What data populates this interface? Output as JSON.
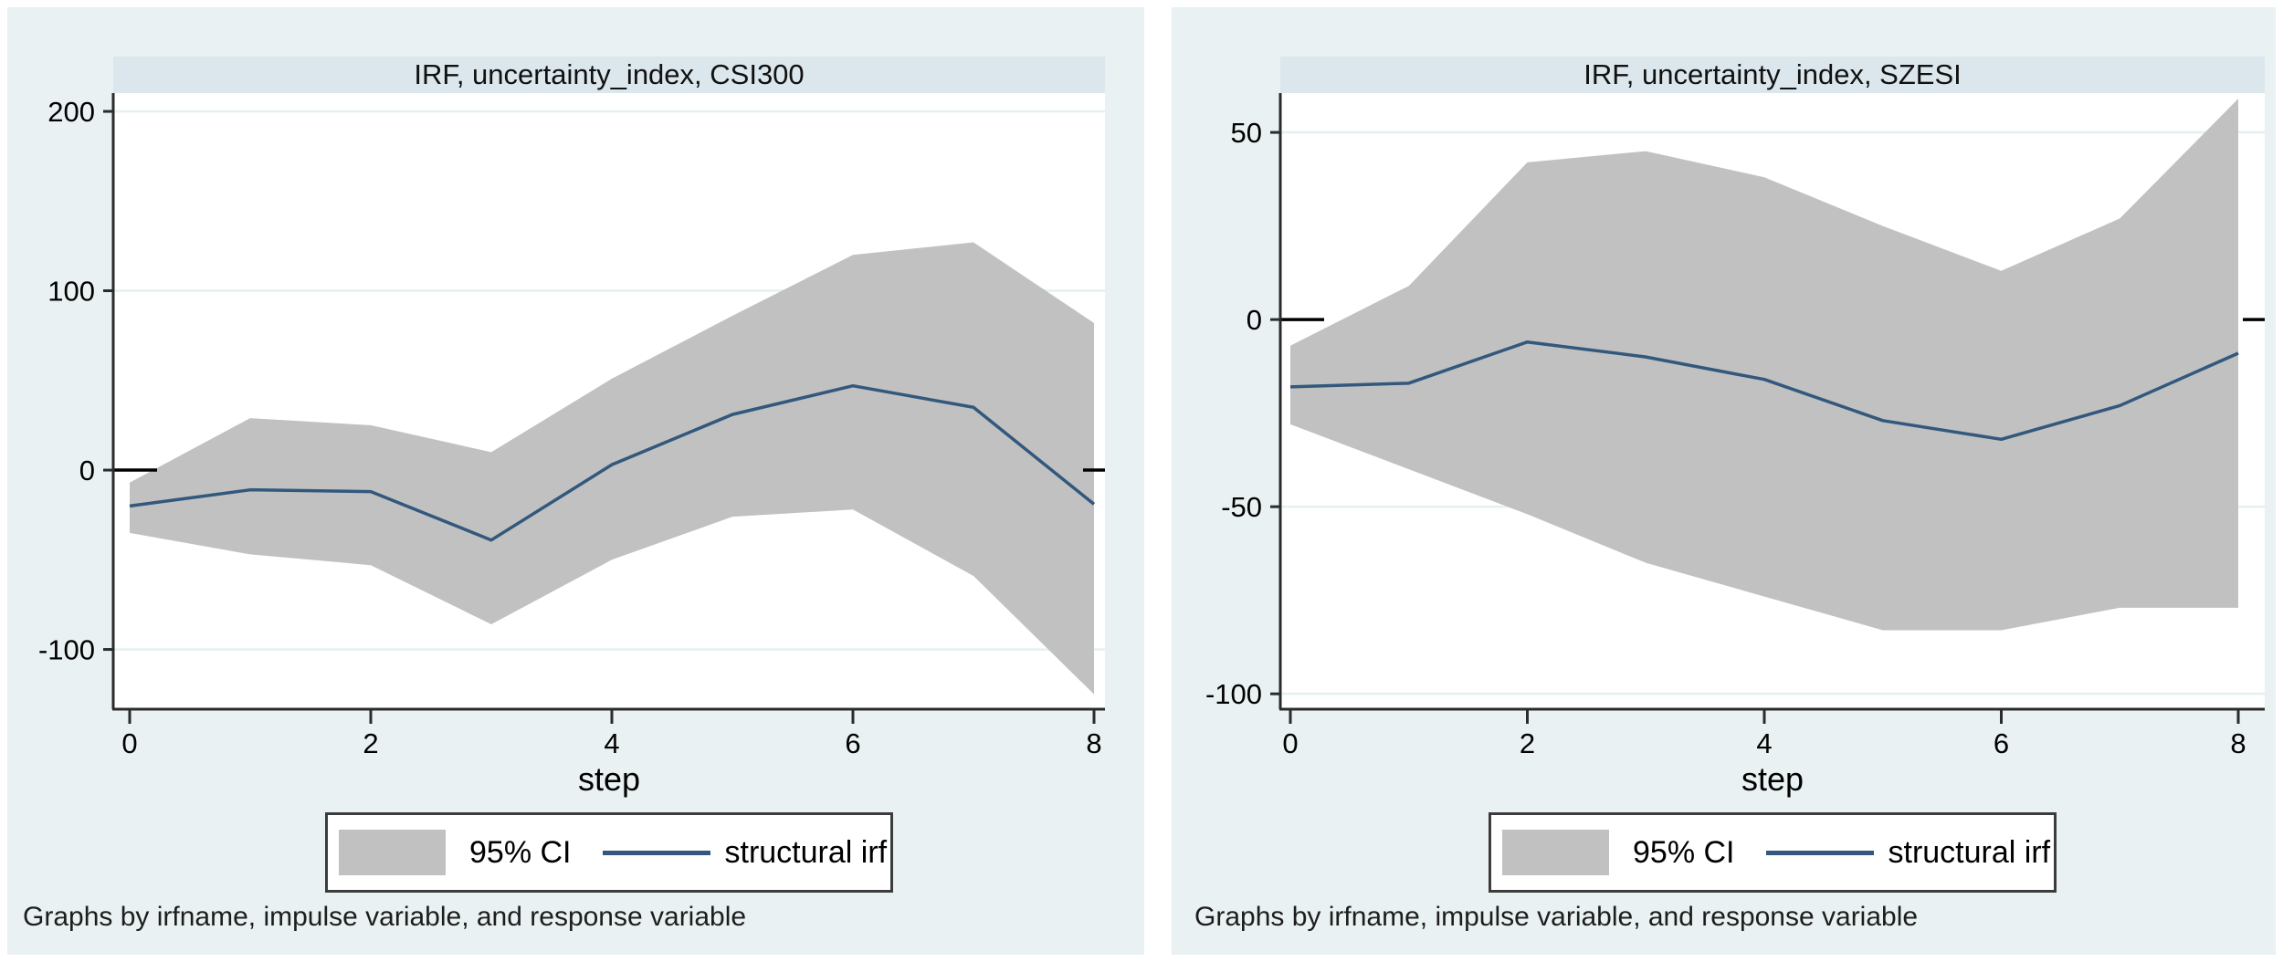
{
  "page": {
    "background": "#ffffff"
  },
  "footer_text": "Graphs by irfname, impulse variable, and response variable",
  "legend": {
    "ci_label": "95% CI",
    "irf_label": "structural irf"
  },
  "colors": {
    "panel_bg": "#e9f1f2",
    "title_band_bg": "#dbe7ed",
    "plot_bg": "#ffffff",
    "grid": "#e4f0f2",
    "ci_band": "#c1c1c1",
    "irf_line": "#33587d",
    "axis": "#2b2b2b",
    "zero_line": "#000000",
    "text": "#000000",
    "legend_border": "#3c3c3c"
  },
  "chart_data": [
    {
      "type": "area",
      "title": "IRF, uncertainty_index, CSI300",
      "xlabel": "step",
      "x": [
        0,
        1,
        2,
        3,
        4,
        5,
        6,
        7,
        8
      ],
      "series": [
        {
          "name": "structural irf",
          "values": [
            -20,
            -11,
            -12,
            -39,
            3,
            31,
            47,
            35,
            -19
          ]
        },
        {
          "name": "95% CI upper",
          "values": [
            -7,
            29,
            25,
            10,
            51,
            86,
            120,
            127,
            82
          ]
        },
        {
          "name": "95% CI lower",
          "values": [
            -35,
            -47,
            -53,
            -86,
            -50,
            -26,
            -22,
            -59,
            -125
          ]
        }
      ],
      "yticks": [
        200,
        100,
        0,
        -100
      ],
      "xticks": [
        0,
        2,
        4,
        6,
        8
      ],
      "ylim": [
        -133.3,
        210.2
      ],
      "xlim": [
        0,
        8
      ],
      "grid": true,
      "legend_position": "bottom"
    },
    {
      "type": "area",
      "title": "IRF, uncertainty_index, SZESI",
      "xlabel": "step",
      "x": [
        0,
        1,
        2,
        3,
        4,
        5,
        6,
        7,
        8
      ],
      "series": [
        {
          "name": "structural irf",
          "values": [
            -18,
            -17,
            -6,
            -10,
            -16,
            -27,
            -32,
            -23,
            -9
          ]
        },
        {
          "name": "95% CI upper",
          "values": [
            -7,
            9,
            42,
            45,
            38,
            25,
            13,
            27,
            59
          ]
        },
        {
          "name": "95% CI lower",
          "values": [
            -28,
            -40,
            -52,
            -65,
            -74,
            -83,
            -83,
            -77,
            -77
          ]
        }
      ],
      "yticks": [
        50,
        0,
        -50,
        -100
      ],
      "xticks": [
        0,
        2,
        4,
        6,
        8
      ],
      "ylim": [
        -104.1,
        60.5
      ],
      "xlim": [
        0,
        8
      ],
      "grid": true,
      "legend_position": "bottom"
    }
  ]
}
